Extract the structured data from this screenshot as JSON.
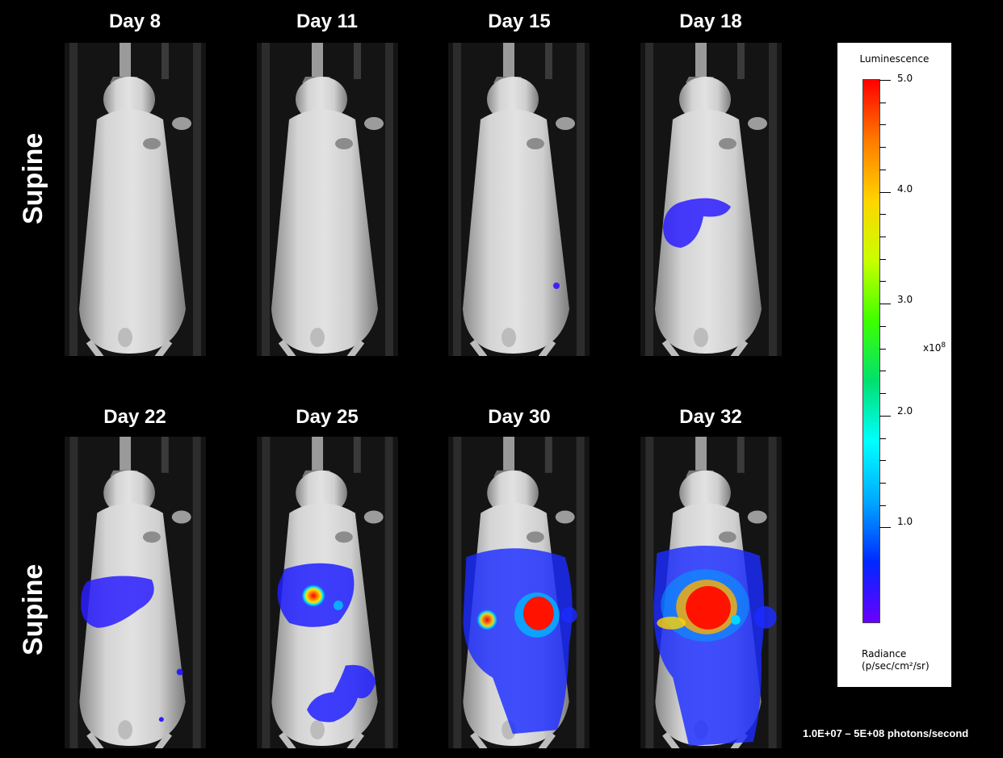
{
  "pose_labels": [
    "Supine",
    "Supine"
  ],
  "panels": [
    {
      "day": "Day 8"
    },
    {
      "day": "Day 11"
    },
    {
      "day": "Day 15"
    },
    {
      "day": "Day 18"
    },
    {
      "day": "Day 22"
    },
    {
      "day": "Day 25"
    },
    {
      "day": "Day 30"
    },
    {
      "day": "Day 32"
    }
  ],
  "legend": {
    "title": "Luminescence",
    "ticks": [
      "5.0",
      "4.0",
      "3.0",
      "2.0",
      "1.0"
    ],
    "multiplier_base": "x10",
    "multiplier_exp": "8",
    "radiance_line1": "Radiance",
    "radiance_line2": "(p/sec/cm²/sr)",
    "colormap": [
      "#6a00ff",
      "#0028ff",
      "#00a8ff",
      "#00ffff",
      "#00e070",
      "#3dff00",
      "#c8ff00",
      "#ffd400",
      "#ff7a00",
      "#ff0000"
    ]
  },
  "range_note": "1.0E+07 – 5E+08 photons/second"
}
